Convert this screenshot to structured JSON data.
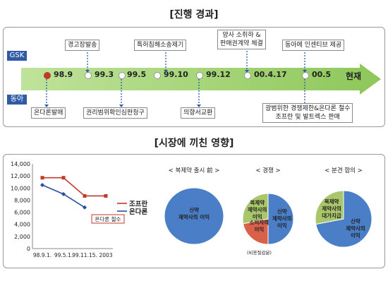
{
  "section1_title": "[진행 경과]",
  "section2_title": "[시장에 끼친 영향]",
  "side_labels": {
    "top": "GSK",
    "bottom": "동아"
  },
  "timeline": {
    "dates": [
      "98.9",
      "99.3",
      "99.5",
      "99.10",
      "99.12",
      "00.4.17",
      "00.5"
    ],
    "end_label": "현재",
    "top_events": [
      "경고장발송",
      "특허침해소송제기",
      "양사 소취하 &\n판매권계약 체결",
      "동아에 인센티브 제공"
    ],
    "bottom_events": [
      "온다론발매",
      "권리범위확인심판청구",
      "의향서교환",
      "광범위한 경쟁제한&온다론 철수\n조프란 및 발트렉스 판매"
    ]
  },
  "chart_data": {
    "type": "line",
    "categories": [
      "98.9.1.",
      "99.5.1.",
      "99.11.15.",
      "2003"
    ],
    "ylim": [
      0,
      14000
    ],
    "yticks": [
      "0",
      "2,000",
      "4,000",
      "6,000",
      "8,000",
      "10,000",
      "12,000",
      "14,000"
    ],
    "series": [
      {
        "name": "조프란",
        "values": [
          11700,
          11700,
          8700,
          8700
        ],
        "color": "#c0392b"
      },
      {
        "name": "온다론",
        "values": [
          10500,
          9000,
          6800,
          null
        ],
        "color": "#2a4ea0"
      }
    ],
    "annotation": "온다론 철수"
  },
  "pies": [
    {
      "title": "< 복제약 출시 前 >",
      "slices": [
        {
          "label": "신약\n제약사의 이익",
          "value": 100,
          "color": "#4a7fc8"
        }
      ]
    },
    {
      "title": "< 경쟁 >",
      "slices": [
        {
          "label": "신약\n제약사의\n이익",
          "value": 50,
          "color": "#4a7fc8"
        },
        {
          "label": "소비자의\n이익",
          "value": 22,
          "color": "#d9614a"
        },
        {
          "label": "복제약\n제약사의\n이익",
          "value": 28,
          "color": "#a9c66a"
        }
      ],
      "note": "(비용절감분)"
    },
    {
      "title": "< 분견 합의 >",
      "slices": [
        {
          "label": "신약\n제약사의\n이익",
          "value": 72,
          "color": "#4a7fc8"
        },
        {
          "label": "복제약\n제약사의\n대가지급",
          "value": 28,
          "color": "#a9c66a"
        }
      ]
    }
  ]
}
